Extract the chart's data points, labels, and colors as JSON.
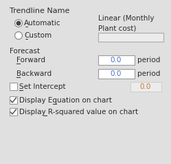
{
  "bg_color": "#e0e0e0",
  "title": "Trendline Name",
  "radio_automatic": "Automatic",
  "radio_custom": "Custom",
  "linear_label": "Linear (Monthly\nPlant cost)",
  "forecast_label": "Forecast",
  "forward_label": "Forward",
  "backward_label": "Backward",
  "forward_value": "0.0",
  "backward_value": "0.0",
  "period_label": "period",
  "set_intercept_label": "Set Intercept",
  "intercept_value": "0.0",
  "display_eq_label": "Display Equation on chart",
  "display_r2_label": "Display R-squared value on chart",
  "text_color": "#2b2b2b",
  "input_bg": "#ffffff",
  "input_border": "#999999",
  "blue_value_color": "#4472c4",
  "orange_value_color": "#c07828"
}
